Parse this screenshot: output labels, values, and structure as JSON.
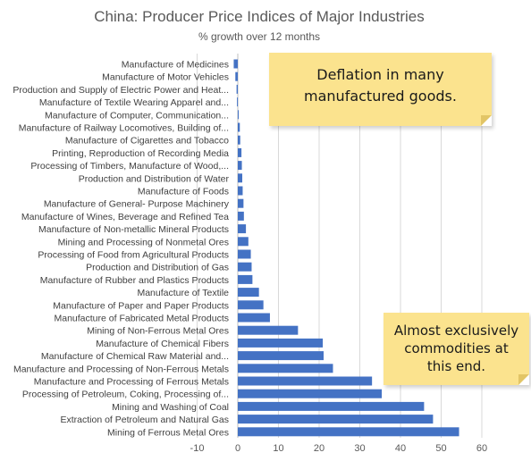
{
  "chart_data": {
    "type": "bar",
    "orientation": "horizontal",
    "title": "China:  Producer Price Indices of Major Industries",
    "subtitle": "% growth over 12 months",
    "categories": [
      "Manufacture of Medicines",
      "Manufacture of Motor Vehicles",
      "Production and Supply of Electric Power and Heat...",
      "Manufacture of Textile Wearing Apparel and...",
      "Manufacture of Computer, Communication...",
      "Manufacture of Railway Locomotives, Building of...",
      "Manufacture of Cigarettes and Tobacco",
      "Printing, Reproduction of Recording Media",
      "Processing of Timbers, Manufacture of Wood,...",
      "Production and Distribution of Water",
      "Manufacture of Foods",
      "Manufacture of General- Purpose Machinery",
      "Manufacture of Wines, Beverage and Refined Tea",
      "Manufacture of Non-metallic Mineral Products",
      "Mining and Processing of Nonmetal Ores",
      "Processing of Food from Agricultural Products",
      "Production and Distribution of Gas",
      "Manufacture of Rubber and Plastics Products",
      "Manufacture of Textile",
      "Manufacture of Paper and Paper Products",
      "Manufacture of Fabricated Metal Products",
      "Mining of Non-Ferrous Metal Ores",
      "Manufacture of Chemical Fibers",
      "Manufacture of Chemical Raw Material and...",
      "Manufacture and Processing of Non-Ferrous Metals",
      "Manufacture and Processing of Ferrous Metals",
      "Processing of Petroleum, Coking, Processing of...",
      "Mining and Washing of Coal",
      "Extraction of Petroleum and Natural Gas",
      "Mining of Ferrous Metal Ores"
    ],
    "values": [
      -1.0,
      -0.6,
      -0.3,
      -0.2,
      0.2,
      0.5,
      0.6,
      0.9,
      1.0,
      1.1,
      1.2,
      1.4,
      1.5,
      2.0,
      2.6,
      3.2,
      3.4,
      3.6,
      5.2,
      6.3,
      7.9,
      14.8,
      20.9,
      21.1,
      23.4,
      33.0,
      35.4,
      45.8,
      48.0,
      54.4
    ],
    "xlim": [
      -10,
      60
    ],
    "ticks": [
      "-10",
      "0",
      "10",
      "20",
      "30",
      "40",
      "50",
      "60"
    ],
    "grid": true,
    "bar_color": "#4472c4"
  },
  "annotations": [
    "Deflation in many manufactured goods.",
    "Almost exclusively commodities at this end."
  ]
}
